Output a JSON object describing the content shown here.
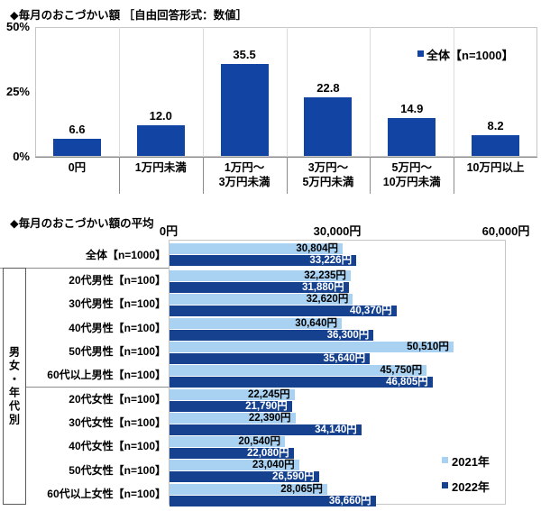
{
  "palette": {
    "bar_blue": "#1245A3",
    "series_2021_light_blue": "#A9D1F1",
    "series_2022_dark_blue": "#16418F",
    "plot_border": "#C6C6C6",
    "axis_gray": "#8C8C8C",
    "grid_gray": "#DCDCDC",
    "box_border": "#5A5A5A",
    "text": "#000000"
  },
  "chart_data": [
    {
      "type": "bar",
      "title": "◆毎月のおこづかい額 ［自由回答形式：数値］",
      "legend": [
        {
          "label": "全体【n=1000】"
        }
      ],
      "legend_position": "inside top-right",
      "unit": "%",
      "ylim": [
        0,
        50
      ],
      "y_ticks": [
        {
          "label": "50%",
          "value": 50
        },
        {
          "label": "25%",
          "value": 25
        },
        {
          "label": "0%",
          "value": 0
        }
      ],
      "grid": "vertical category separators only",
      "categories": [
        "0円",
        "1万円未満",
        "1万円〜\n3万円未満",
        "3万円〜\n5万円未満",
        "5万円〜\n10万円未満",
        "10万円以上"
      ],
      "values": [
        6.6,
        12.0,
        35.5,
        22.8,
        14.9,
        8.2
      ],
      "value_labels": [
        "6.6",
        "12.0",
        "35.5",
        "22.8",
        "14.9",
        "8.2"
      ]
    },
    {
      "type": "horizontal-bar",
      "title": "◆毎月のおこづかい額の平均",
      "row_group_label": "男女・年代別",
      "xlim": [
        0,
        60000
      ],
      "x_ticks": [
        {
          "label": "0円",
          "value": 0
        },
        {
          "label": "30,000円",
          "value": 30000
        },
        {
          "label": "60,000円",
          "value": 60000
        }
      ],
      "categories": [
        "全体【n=1000】",
        "20代男性【n=100】",
        "30代男性【n=100】",
        "40代男性【n=100】",
        "50代男性【n=100】",
        "60代以上男性【n=100】",
        "20代女性【n=100】",
        "30代女性【n=100】",
        "40代女性【n=100】",
        "50代女性【n=100】",
        "60代以上女性【n=100】"
      ],
      "group_separators_after_rows": [
        0,
        5
      ],
      "series": [
        {
          "name": "2021年",
          "values": [
            30804,
            32235,
            32620,
            30640,
            50510,
            45750,
            22245,
            22390,
            20540,
            23040,
            28065
          ],
          "value_labels": [
            "30,804円",
            "32,235円",
            "32,620円",
            "30,640円",
            "50,510円",
            "45,750円",
            "22,245円",
            "22,390円",
            "20,540円",
            "23,040円",
            "28,065円"
          ]
        },
        {
          "name": "2022年",
          "values": [
            33226,
            31880,
            40370,
            36300,
            35640,
            46805,
            21790,
            34140,
            22080,
            26590,
            36660
          ],
          "value_labels": [
            "33,226円",
            "31,880円",
            "40,370円",
            "36,300円",
            "35,640円",
            "46,805円",
            "21,790円",
            "34,140円",
            "22,080円",
            "26,590円",
            "36,660円"
          ]
        }
      ],
      "legend": [
        "2021年",
        "2022年"
      ],
      "legend_position": "right middle"
    }
  ]
}
